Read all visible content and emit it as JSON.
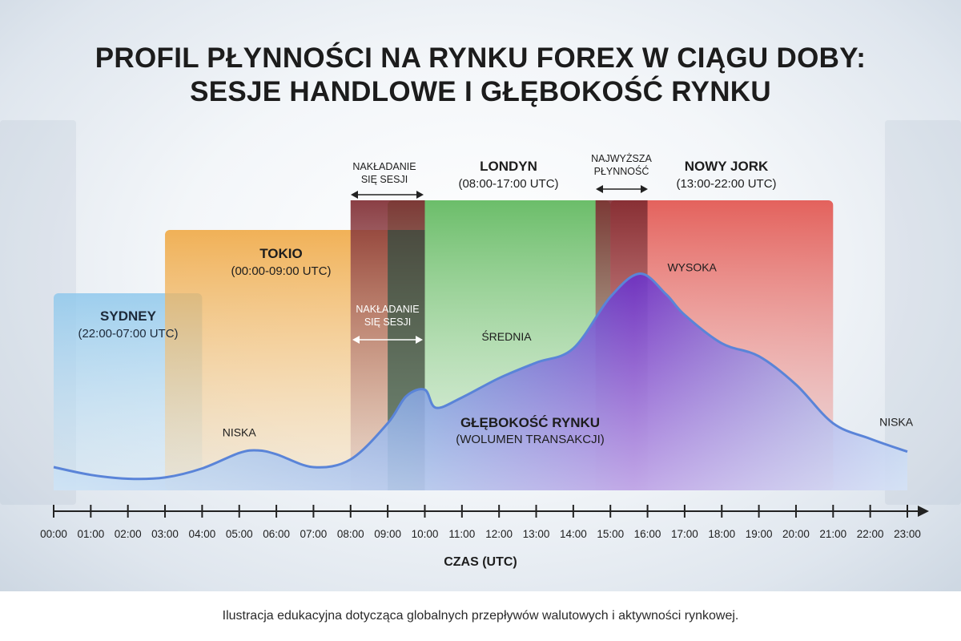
{
  "title_lines": [
    "PROFIL PŁYNNOŚCI NA RYNKU FOREX W CIĄGU DOBY:",
    "SESJE HANDLOWE I GŁĘBOKOŚĆ RYNKU"
  ],
  "caption": "Ilustracja edukacyjna dotycząca globalnych przepływów walutowych i aktywności rynkowej.",
  "chart_data": {
    "type": "area",
    "x_label": "CZAS (UTC)",
    "x_ticks": [
      "00:00",
      "01:00",
      "02:00",
      "03:00",
      "04:00",
      "05:00",
      "06:00",
      "07:00",
      "08:00",
      "09:00",
      "10:00",
      "11:00",
      "12:00",
      "13:00",
      "14:00",
      "15:00",
      "16:00",
      "17:00",
      "18:00",
      "19:00",
      "20:00",
      "21:00",
      "22:00",
      "23:00"
    ],
    "x_range": [
      0,
      23
    ],
    "sessions": [
      {
        "name": "SYDNEY",
        "hours": "(22:00-07:00 UTC)",
        "span_shown": [
          0,
          4
        ],
        "color": "#9fd0ee"
      },
      {
        "name": "TOKIO",
        "hours": "(00:00-09:00 UTC)",
        "span_shown": [
          3,
          10
        ],
        "color": "#f0b45a"
      },
      {
        "name": "LONDYN",
        "hours": "(08:00-17:00 UTC)",
        "span_shown": [
          9,
          15
        ],
        "color": "#6cbe6a"
      },
      {
        "name": "NOWY JORK",
        "hours": "(13:00-22:00 UTC)",
        "span_shown": [
          15,
          21
        ],
        "color": "#e0605e"
      }
    ],
    "overlaps": [
      {
        "label_top": "NAKŁADANIE",
        "label_bottom": "SIĘ SESJI",
        "range": [
          8,
          10
        ],
        "color": "#8a2a2e"
      },
      {
        "label_top": "NAJWYŻSZA",
        "label_bottom": "PŁYNNOŚĆ",
        "range": [
          14.6,
          16
        ],
        "color": "#8a2a2e"
      }
    ],
    "overlap_inner_label": {
      "top": "NAKŁADANIE",
      "bottom": "SIĘ SESJI"
    },
    "series": [
      {
        "name": "GŁĘBOKOŚĆ RYNKU",
        "subtitle": "(WOLUMEN TRANSAKCJI)",
        "x": [
          0,
          1,
          2,
          3,
          4,
          5,
          5.5,
          6,
          7,
          8,
          9,
          9.5,
          10,
          10.3,
          11,
          12,
          13,
          14,
          15,
          15.8,
          16.5,
          17,
          18,
          19,
          20,
          21,
          22,
          23
        ],
        "y": [
          18,
          12,
          9,
          10,
          17,
          29,
          31,
          28,
          18,
          24,
          52,
          73,
          78,
          64,
          72,
          87,
          99,
          110,
          150,
          168,
          152,
          136,
          114,
          104,
          82,
          52,
          40,
          30
        ]
      }
    ],
    "y_range": [
      0,
      200
    ],
    "annotations": [
      {
        "text": "NISKA",
        "x": 5.0,
        "y": 42
      },
      {
        "text": "ŚREDNIA",
        "x": 12.2,
        "y": 116
      },
      {
        "text": "WYSOKA",
        "x": 17.2,
        "y": 170
      },
      {
        "text": "NISKA",
        "x": 22.7,
        "y": 50
      }
    ]
  }
}
